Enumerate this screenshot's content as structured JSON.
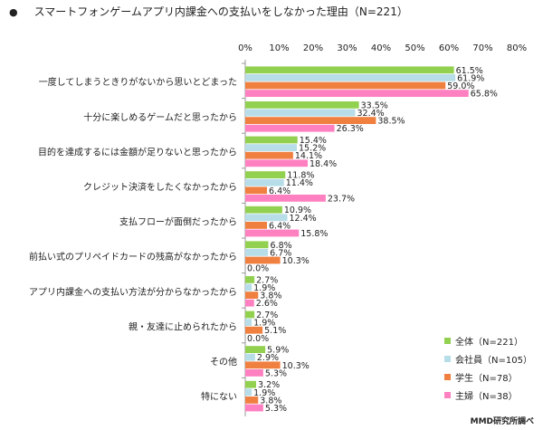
{
  "title": "スマートフォンゲームアプリ内課金への支払いをしなかった理由（N=221）",
  "bullet": "●",
  "source": "MMD研究所調べ",
  "colors": {
    "全体": "#92d050",
    "会社員": "#b7dde8",
    "学生": "#f08040",
    "主婦": "#ff80c0"
  },
  "chart_data": {
    "type": "bar",
    "orientation": "horizontal",
    "title": "スマートフォンゲームアプリ内課金への支払いをしなかった理由（N=221）",
    "xlim": [
      0,
      80
    ],
    "x_ticks": [
      "0%",
      "10%",
      "20%",
      "30%",
      "40%",
      "50%",
      "60%",
      "70%",
      "80%"
    ],
    "legend_position": "bottom-right",
    "grid": false,
    "categories": [
      "一度してしまうときりがないから思いとどまった",
      "十分に楽しめるゲームだと思ったから",
      "目的を達成するには金額が足りないと思ったから",
      "クレジット決済をしたくなかったから",
      "支払フローが面倒だったから",
      "前払い式のプリペイドカードの残高がなかったから",
      "アプリ内課金への支払い方法が分からなかったから",
      "親・友達に止められたから",
      "その他",
      "特にない"
    ],
    "series": [
      {
        "name": "全体（N=221）",
        "key": "全体",
        "values": [
          61.5,
          33.5,
          15.4,
          11.8,
          10.9,
          6.8,
          2.7,
          2.7,
          5.9,
          3.2
        ],
        "labels": [
          "61.5%",
          "33.5%",
          "15.4%",
          "11.8%",
          "10.9%",
          "6.8%",
          "2.7%",
          "2.7%",
          "5.9%",
          "3.2%"
        ]
      },
      {
        "name": "会社員（N=105）",
        "key": "会社員",
        "values": [
          61.9,
          32.4,
          15.2,
          11.4,
          12.4,
          6.7,
          1.9,
          1.9,
          2.9,
          1.9
        ],
        "labels": [
          "61.9%",
          "32.4%",
          "15.2%",
          "11.4%",
          "12.4%",
          "6.7%",
          "1.9%",
          "1.9%",
          "2.9%",
          "1.9%"
        ]
      },
      {
        "name": "学生（N=78）",
        "key": "学生",
        "values": [
          59.0,
          38.5,
          14.1,
          6.4,
          6.4,
          10.3,
          3.8,
          5.1,
          10.3,
          3.8
        ],
        "labels": [
          "59.0%",
          "38.5%",
          "14.1%",
          "6.4%",
          "6.4%",
          "10.3%",
          "3.8%",
          "5.1%",
          "10.3%",
          "3.8%"
        ]
      },
      {
        "name": "主婦（N=38）",
        "key": "主婦",
        "values": [
          65.8,
          26.3,
          18.4,
          23.7,
          15.8,
          0.0,
          2.6,
          0.0,
          5.3,
          5.3
        ],
        "labels": [
          "65.8%",
          "26.3%",
          "18.4%",
          "23.7%",
          "15.8%",
          "0.0%",
          "2.6%",
          "0.0%",
          "5.3%",
          "5.3%"
        ]
      }
    ]
  }
}
